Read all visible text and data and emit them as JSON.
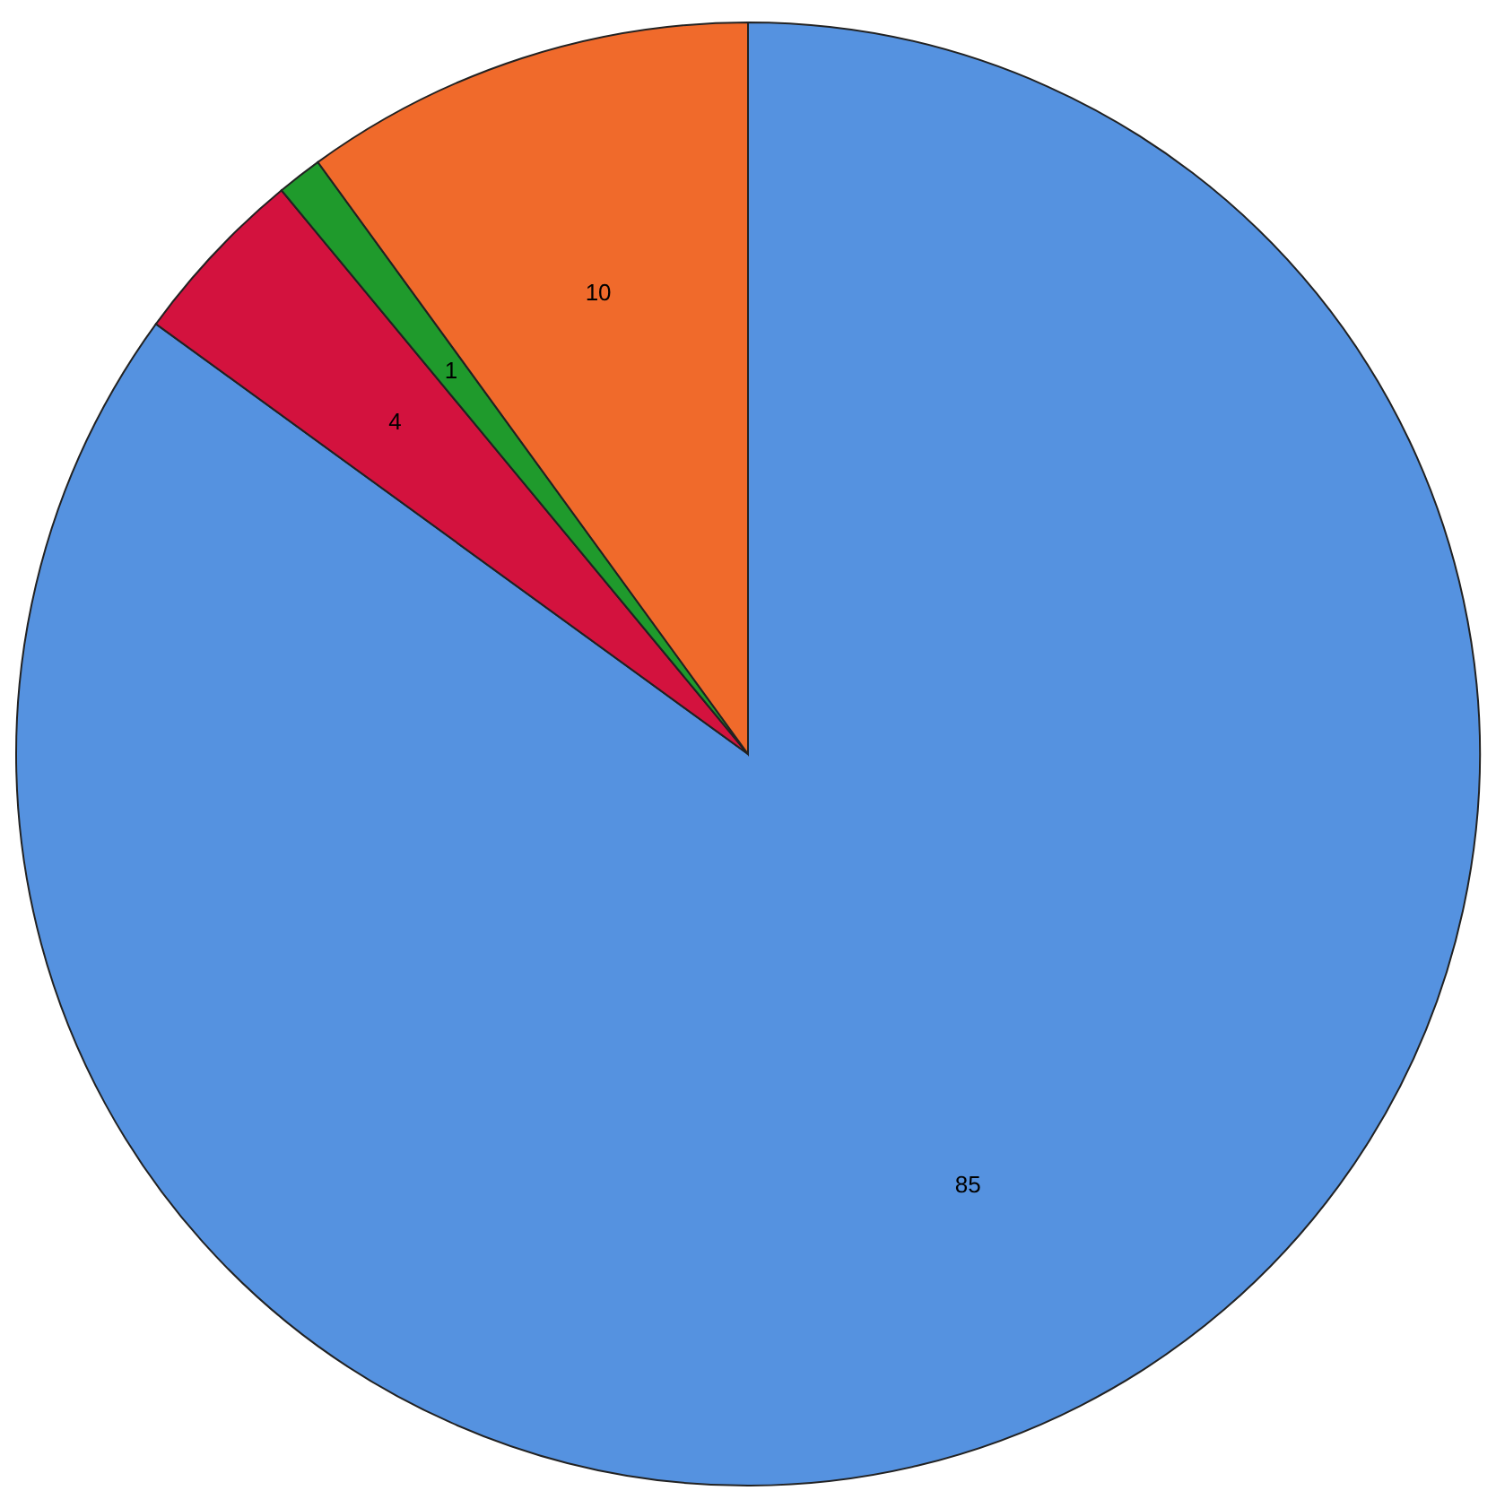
{
  "chart_data": {
    "type": "pie",
    "categories": [
      null,
      null,
      null,
      null
    ],
    "values": [
      85,
      4,
      1,
      10
    ],
    "colors": [
      "#5592e0",
      "#d3123e",
      "#1f9a2c",
      "#f06a2b"
    ],
    "data_labels": true
  }
}
